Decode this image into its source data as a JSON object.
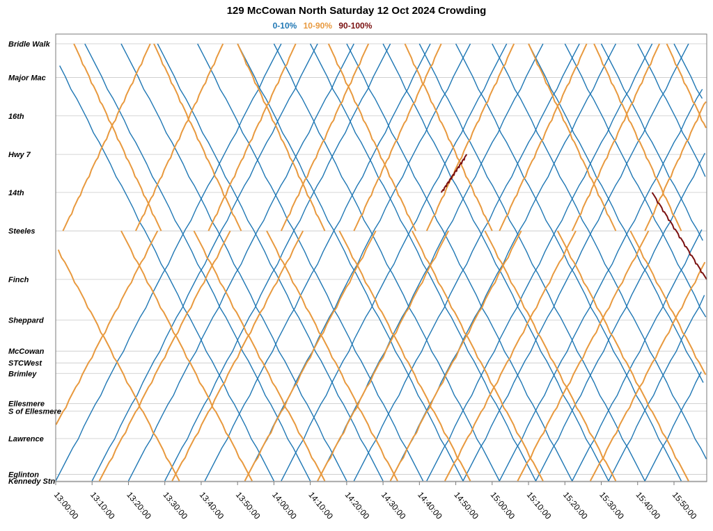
{
  "chart_data": {
    "type": "line",
    "title": "129 McCowan North Saturday 12 Oct 2024 Crowding",
    "legend": [
      {
        "label": "0-10%",
        "color": "#1f77b4"
      },
      {
        "label": "10-90%",
        "color": "#e8993e"
      },
      {
        "label": "90-100%",
        "color": "#7a1010"
      }
    ],
    "x_ticks": [
      "13:00:00",
      "13:10:00",
      "13:20:00",
      "13:30:00",
      "13:40:00",
      "13:50:00",
      "14:00:00",
      "14:10:00",
      "14:20:00",
      "14:30:00",
      "14:40:00",
      "14:50:00",
      "15:00:00",
      "15:10:00",
      "15:20:00",
      "15:30:00",
      "15:40:00",
      "15:50:00"
    ],
    "x_range": [
      "13:00:00",
      "15:59:00"
    ],
    "stops": [
      {
        "name": "Bridle Walk",
        "pos": 0.0
      },
      {
        "name": "Major Mac",
        "pos": 0.077
      },
      {
        "name": "16th",
        "pos": 0.165
      },
      {
        "name": "Hwy 7",
        "pos": 0.253
      },
      {
        "name": "14th",
        "pos": 0.34
      },
      {
        "name": "Steeles",
        "pos": 0.428
      },
      {
        "name": "Finch",
        "pos": 0.539
      },
      {
        "name": "Sheppard",
        "pos": 0.632
      },
      {
        "name": "McCowan",
        "pos": 0.703
      },
      {
        "name": "STCWest",
        "pos": 0.73
      },
      {
        "name": "Brimley",
        "pos": 0.754
      },
      {
        "name": "Ellesmere",
        "pos": 0.823
      },
      {
        "name": "S of Ellesmere",
        "pos": 0.84
      },
      {
        "name": "Lawrence",
        "pos": 0.903
      },
      {
        "name": "Eglinton",
        "pos": 0.985
      },
      {
        "name": "Kennedy Stn",
        "pos": 1.0
      }
    ],
    "grid": true,
    "legend_position": "top-center",
    "series": [
      {
        "crowding": "0-10%",
        "stop_a": "Kennedy Stn",
        "stop_b": "Bridle Walk",
        "start_times": [
          "13:00",
          "13:10",
          "13:20",
          "13:30",
          "13:41",
          "13:52",
          "14:02",
          "14:12",
          "14:22",
          "14:32",
          "14:42",
          "14:52",
          "15:02",
          "15:12",
          "15:22",
          "15:32",
          "15:42"
        ],
        "duration_min": 62
      },
      {
        "crowding": "0-10%",
        "stop_a": "Bridle Walk",
        "stop_b": "Kennedy Stn",
        "start_times": [
          "12:58",
          "13:08",
          "13:18",
          "13:28",
          "13:39",
          "13:50",
          "14:00",
          "14:10",
          "14:20",
          "14:30",
          "14:40",
          "14:50",
          "15:00",
          "15:10",
          "15:20",
          "15:30",
          "15:40",
          "15:50"
        ],
        "duration_min": 62
      },
      {
        "crowding": "10-90%",
        "stop_a": "Kennedy Stn",
        "stop_b": "Steeles",
        "start_times": [
          "12:52",
          "13:12",
          "13:32",
          "13:52",
          "14:12",
          "14:32",
          "14:47",
          "15:07",
          "15:27"
        ],
        "duration_min": 36
      },
      {
        "crowding": "10-90%",
        "stop_a": "Steeles",
        "stop_b": "Kennedy Stn",
        "start_times": [
          "12:58",
          "13:18",
          "13:38",
          "13:58",
          "14:18",
          "14:38",
          "14:58",
          "15:18",
          "15:38"
        ],
        "duration_min": 36
      },
      {
        "crowding": "10-90%",
        "stop_a": "Steeles",
        "stop_b": "Bridle Walk",
        "start_times": [
          "13:02",
          "13:22",
          "13:42",
          "14:02",
          "14:22",
          "14:42",
          "15:02",
          "15:22",
          "15:42"
        ],
        "duration_min": 24
      },
      {
        "crowding": "10-90%",
        "stop_a": "Bridle Walk",
        "stop_b": "Steeles",
        "start_times": [
          "13:05",
          "13:27",
          "13:50",
          "14:15",
          "14:36",
          "15:10",
          "15:28",
          "15:48"
        ],
        "duration_min": 24
      },
      {
        "crowding": "90-100%",
        "stop_a": "14th",
        "stop_b": "Hwy 7",
        "start_times": [
          "14:46"
        ],
        "duration_min": 7
      },
      {
        "crowding": "90-100%",
        "stop_a": "14th",
        "stop_b": "Finch",
        "start_times": [
          "15:44"
        ],
        "duration_min": 15
      }
    ]
  }
}
